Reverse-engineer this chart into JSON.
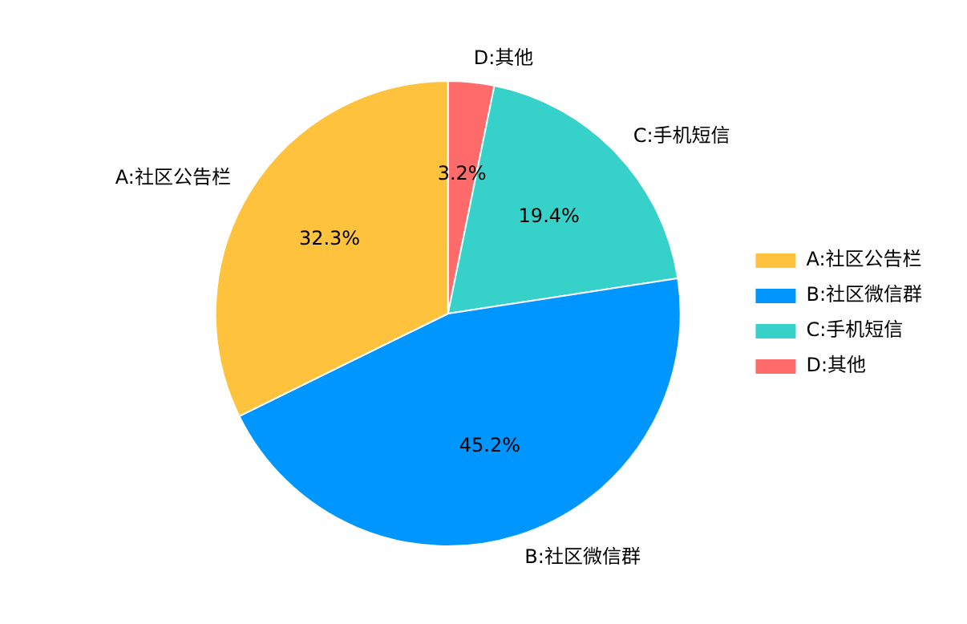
{
  "chart_data": {
    "type": "pie",
    "categories": [
      "A:社区公告栏",
      "B:社区微信群",
      "C:手机短信",
      "D:其他"
    ],
    "values": [
      32.3,
      45.2,
      19.4,
      3.2
    ],
    "value_labels": [
      "32.3%",
      "45.2%",
      "19.4%",
      "3.2%"
    ],
    "colors": [
      "#ffc23d",
      "#0096ff",
      "#36d1c9",
      "#ff6b6b"
    ],
    "legend": "right"
  }
}
